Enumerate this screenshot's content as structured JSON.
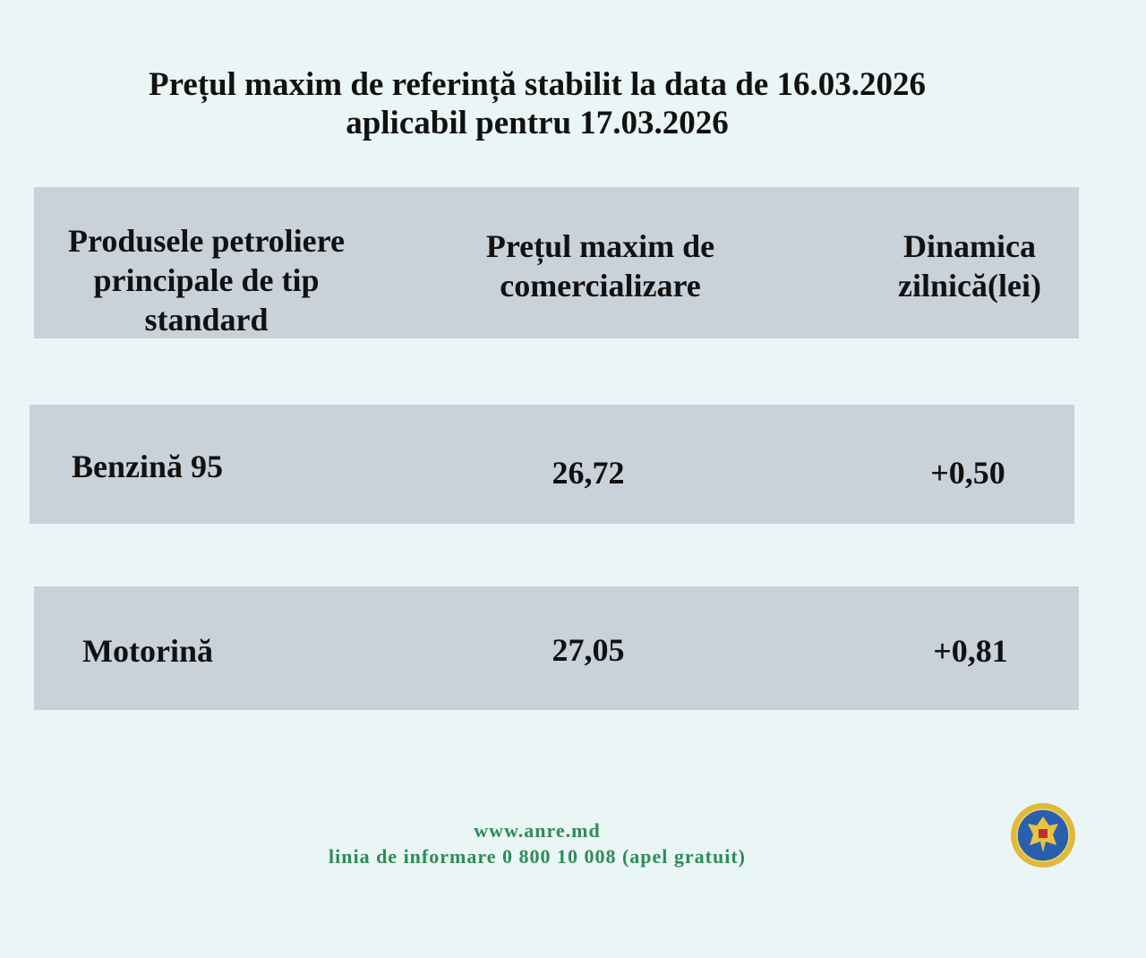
{
  "title": {
    "line1": "Prețul maxim de referință stabilit la data de 16.03.2026",
    "line2": "aplicabil pentru 17.03.2026"
  },
  "table": {
    "headers": [
      [
        "Produsele petroliere",
        "principale de tip",
        "standard"
      ],
      [
        "Prețul maxim de",
        "comercializare"
      ],
      [
        "Dinamica",
        "zilnică(lei)"
      ]
    ],
    "rows": [
      {
        "product": "Benzină 95",
        "price": "26,72",
        "change": "+0,50"
      },
      {
        "product": "Motorină",
        "price": "27,05",
        "change": "+0,81"
      }
    ]
  },
  "footer": {
    "website": "www.anre.md",
    "hotline": "linia de informare 0 800 10 008 (apel gratuit)"
  },
  "logo": {
    "name": "anre-emblem-logo"
  },
  "colors": {
    "background": "#eaf5f5",
    "box": "#c9d1d9",
    "footer_text": "#2e8b57"
  }
}
